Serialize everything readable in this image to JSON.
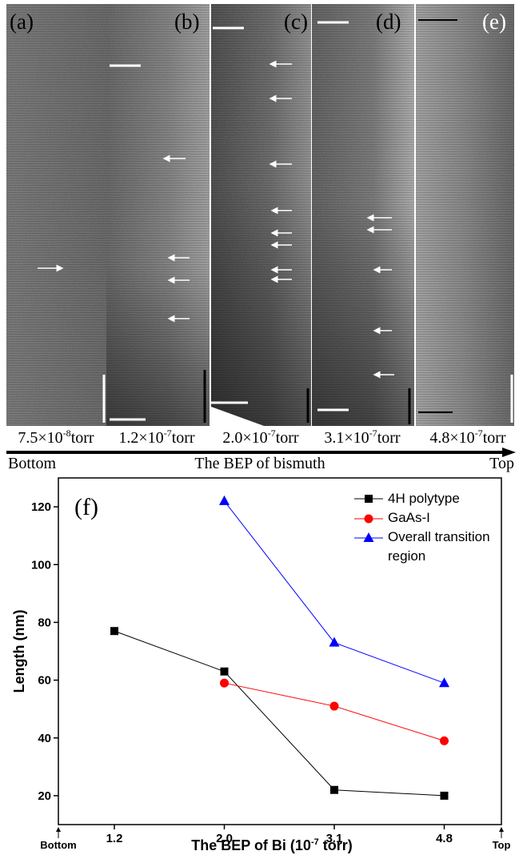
{
  "images": {
    "panels": [
      {
        "label": "(a)",
        "bep": {
          "mantissa": "7.5×10",
          "exponent": "-8",
          "unit": "torr"
        }
      },
      {
        "label": "(b)",
        "bep": {
          "mantissa": "1.2×10",
          "exponent": "-7",
          "unit": "torr"
        }
      },
      {
        "label": "(c)",
        "bep": {
          "mantissa": "2.0×10",
          "exponent": "-7",
          "unit": "torr"
        }
      },
      {
        "label": "(d)",
        "bep": {
          "mantissa": "3.1×10",
          "exponent": "-7",
          "unit": "torr"
        }
      },
      {
        "label": "(e)",
        "bep": {
          "mantissa": "4.8×10",
          "exponent": "-7",
          "unit": "torr"
        }
      }
    ]
  },
  "axis_arrow": {
    "start": "Bottom",
    "label": "The BEP of bismuth",
    "end": "Top"
  },
  "chart_data": {
    "type": "line",
    "panel_label": "(f)",
    "categories": [
      "1.2",
      "2.0",
      "3.1",
      "4.8"
    ],
    "x_ends": [
      "Bottom",
      "Top"
    ],
    "xlabel": {
      "text": "The BEP of Bi (10",
      "superscript": "-7",
      "suffix": " torr)"
    },
    "ylabel": "Length (nm)",
    "ylim": [
      10,
      130
    ],
    "yticks": [
      20,
      40,
      60,
      80,
      100,
      120
    ],
    "legend": "upper right",
    "series": [
      {
        "name": "4H polytype",
        "color": "#000000",
        "marker": "square",
        "values": [
          77,
          63,
          22,
          20
        ]
      },
      {
        "name": "GaAs-I",
        "color": "#ff0000",
        "marker": "circle",
        "values": [
          null,
          59,
          51,
          39
        ]
      },
      {
        "name": "Overall transition region",
        "color": "#0000ff",
        "marker": "triangle",
        "values": [
          null,
          122,
          73,
          59
        ]
      }
    ]
  }
}
